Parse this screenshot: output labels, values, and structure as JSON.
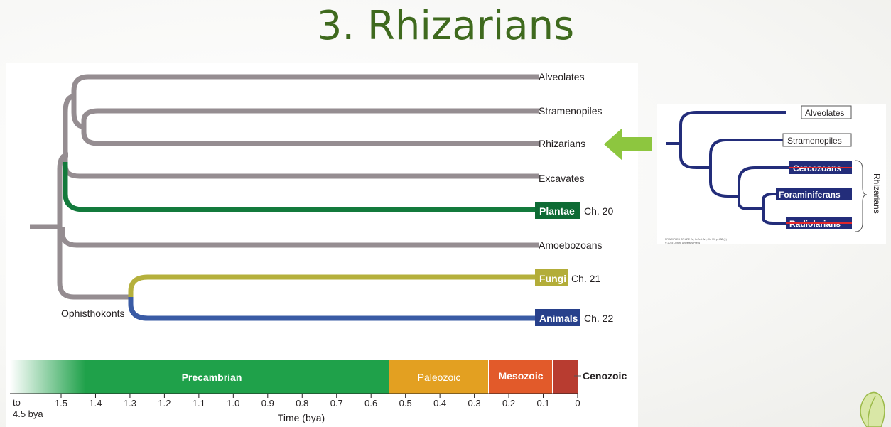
{
  "title": "3. Rhizarians",
  "tree": {
    "taxa": [
      {
        "label": "Alveolates",
        "boxed": false,
        "chapter": ""
      },
      {
        "label": "Stramenopiles",
        "boxed": false,
        "chapter": ""
      },
      {
        "label": "Rhizarians",
        "boxed": false,
        "chapter": ""
      },
      {
        "label": "Excavates",
        "boxed": false,
        "chapter": ""
      },
      {
        "label": "Plantae",
        "boxed": true,
        "chapter": "Ch. 20"
      },
      {
        "label": "Amoebozoans",
        "boxed": false,
        "chapter": ""
      },
      {
        "label": "Fungi",
        "boxed": true,
        "chapter": "Ch. 21"
      },
      {
        "label": "Animals",
        "boxed": true,
        "chapter": "Ch. 22"
      }
    ],
    "clade_label": "Ophisthokonts",
    "colors": {
      "gray": "#958d91",
      "plantae": "#137a3c",
      "fungi": "#b5b03c",
      "animals": "#3a5ba5",
      "plantae_box": "#0e6b34",
      "fungi_box": "#b3ad39",
      "animals_box": "#27408b"
    }
  },
  "timescale": {
    "eras": [
      {
        "name": "Precambrian",
        "color": "#1fa14a"
      },
      {
        "name": "Paleozoic",
        "color": "#e3a021"
      },
      {
        "name": "Mesozoic",
        "color": "#e25a2a"
      },
      {
        "name": "Cenozoic",
        "color": "#b83c30"
      }
    ],
    "ticks": [
      "1.5",
      "1.4",
      "1.3",
      "1.2",
      "1.1",
      "1.0",
      "0.9",
      "0.8",
      "0.7",
      "0.6",
      "0.5",
      "0.4",
      "0.3",
      "0.2",
      "0.1",
      "0"
    ],
    "start_label_line1": "to",
    "start_label_line2": "4.5 bya",
    "axis_label": "Time (bya)"
  },
  "inset": {
    "labels": [
      "Alveolates",
      "Stramenopiles",
      "Cercozoans",
      "Foraminiferans",
      "Radiolarians"
    ],
    "group_label": "Rhizarians",
    "tree_color": "#232d7a",
    "box_color": "#232d7a",
    "strike_color": "#e0262b",
    "arrow_color": "#8dc63f",
    "credit_line1": "PRINCIPLES OF LIFE 2e, In-Text Art, Ch. 19, p. 438 (1)",
    "credit_line2": "© 2015 Oxford University Press"
  }
}
